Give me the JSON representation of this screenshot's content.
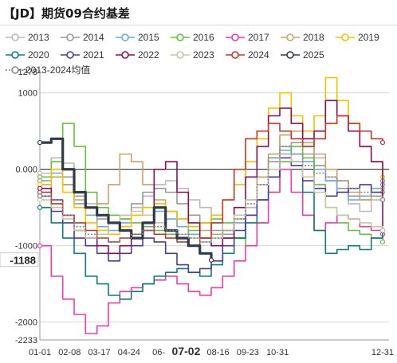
{
  "title": "【JD】期货09合约基差",
  "chart_data": {
    "type": "line",
    "title": "【JD】期货09合约基差",
    "xlabel": "",
    "ylabel": "",
    "x_ticks": [
      "01-01",
      "02-08",
      "03-17",
      "04-24",
      "06-",
      "07-02",
      "08-16",
      "09-23",
      "10-31",
      "12-31"
    ],
    "x_highlight": "07-02",
    "y_ticks": [
      "1000",
      "0.000",
      "-1000",
      "-2000",
      "-2233"
    ],
    "y_top_label": "1278",
    "y_min": -2233,
    "y_max": 1278,
    "y_highlight": "-1188",
    "grid": "horizontal",
    "legend_placement": "top",
    "series": [
      {
        "name": "2013",
        "color": "#b9b9b9",
        "values": [
          -50,
          150,
          80,
          -300,
          -450,
          -600,
          -700,
          -650,
          -500,
          -350,
          -200,
          -150,
          -250,
          -400,
          -500,
          -700,
          -800,
          -900,
          -500,
          -100,
          200,
          450,
          400,
          300,
          150,
          -100,
          -300,
          -450,
          -550,
          -400,
          -250
        ]
      },
      {
        "name": "2014",
        "color": "#9a9a9a",
        "values": [
          -150,
          0,
          -100,
          -350,
          -500,
          -650,
          -700,
          -600,
          -450,
          -300,
          -250,
          -300,
          -450,
          -600,
          -700,
          -800,
          -850,
          -900,
          -600,
          -200,
          100,
          300,
          350,
          200,
          50,
          -150,
          -250,
          -350,
          -400,
          -300,
          -200
        ]
      },
      {
        "name": "2015",
        "color": "#6fa8dc",
        "values": [
          -200,
          -50,
          -200,
          -450,
          -600,
          -750,
          -800,
          -700,
          -600,
          -500,
          -550,
          -650,
          -750,
          -850,
          -950,
          -1000,
          -900,
          -700,
          -400,
          -100,
          150,
          250,
          200,
          100,
          0,
          -150,
          -300,
          -400,
          -350,
          -250,
          -150
        ]
      },
      {
        "name": "2016",
        "color": "#6abf3c",
        "values": [
          -100,
          100,
          600,
          300,
          -300,
          -500,
          -600,
          -650,
          -700,
          -750,
          -800,
          -850,
          -900,
          -800,
          -700,
          -650,
          -700,
          -900,
          -1000,
          -700,
          -300,
          100,
          300,
          150,
          -200,
          -500,
          -700,
          -800,
          -850,
          -900,
          -950
        ]
      },
      {
        "name": "2017",
        "color": "#f13ba8",
        "values": [
          -1000,
          -1400,
          -1700,
          -1900,
          -2150,
          -2050,
          -1750,
          -1600,
          -1550,
          -1500,
          -1450,
          -1400,
          -1500,
          -1600,
          -1650,
          -1550,
          -1400,
          -1200,
          -1000,
          -700,
          -300,
          0,
          -300,
          -600,
          -800,
          -700,
          -600,
          -650,
          -750,
          -800,
          -850
        ]
      },
      {
        "name": "2018",
        "color": "#c7a36a",
        "values": [
          -300,
          -100,
          -200,
          -400,
          -500,
          -450,
          -200,
          200,
          100,
          -200,
          -400,
          -550,
          -650,
          -750,
          -800,
          -850,
          -800,
          -650,
          -400,
          -100,
          200,
          450,
          500,
          350,
          200,
          0,
          -150,
          -300,
          -400,
          -350,
          -300
        ]
      },
      {
        "name": "2019",
        "color": "#f5c000",
        "values": [
          -200,
          0,
          -300,
          -500,
          -700,
          -800,
          -850,
          -750,
          -600,
          -500,
          -450,
          -550,
          -650,
          -750,
          -700,
          -600,
          -400,
          -200,
          100,
          400,
          800,
          1000,
          700,
          500,
          700,
          1200,
          900,
          600,
          300,
          100,
          -100
        ]
      },
      {
        "name": "2020",
        "color": "#0b7d7d",
        "values": [
          -500,
          -700,
          -900,
          -1100,
          -1400,
          -1500,
          -1650,
          -1700,
          -1600,
          -1500,
          -1400,
          -1350,
          -1300,
          -1350,
          -1400,
          -1250,
          -1100,
          -900,
          -700,
          -400,
          -100,
          200,
          100,
          -300,
          -800,
          -1100,
          -1050,
          -1000,
          -1050,
          -900,
          -800
        ]
      },
      {
        "name": "2021",
        "color": "#4b3aa0",
        "values": [
          -350,
          -550,
          -700,
          -900,
          -1000,
          -1100,
          -1200,
          -1100,
          -1000,
          -900,
          -950,
          -1100,
          -1250,
          -1350,
          -1300,
          -1200,
          -1000,
          -800,
          -600,
          -400,
          -100,
          150,
          50,
          -150,
          -250,
          -350,
          -300,
          -250,
          -200,
          -300,
          -400
        ]
      },
      {
        "name": "2022",
        "color": "#8c0f55",
        "values": [
          -250,
          -400,
          -600,
          -800,
          -900,
          -1000,
          -1100,
          -1000,
          -900,
          -800,
          0,
          100,
          -300,
          -700,
          -900,
          -1000,
          -900,
          -500,
          -100,
          300,
          700,
          800,
          600,
          400,
          500,
          900,
          700,
          500,
          300,
          100,
          -800
        ]
      },
      {
        "name": "2023",
        "color": "#c5c8a0",
        "values": [
          -400,
          -500,
          -650,
          -800,
          -900,
          -850,
          -700,
          -600,
          -550,
          -600,
          -700,
          -800,
          -850,
          -900,
          -950,
          -900,
          -800,
          -600,
          -400,
          -200,
          0,
          200,
          100,
          -100,
          -300,
          -500,
          -600,
          -650,
          -700,
          -750,
          -800
        ]
      },
      {
        "name": "2024",
        "color": "#c0392b",
        "values": [
          -300,
          -450,
          -600,
          -700,
          -800,
          -900,
          -950,
          -900,
          -850,
          -800,
          -850,
          -900,
          -950,
          -1000,
          -900,
          -700,
          -400,
          0,
          400,
          500,
          600,
          500,
          400,
          300,
          400,
          600,
          700,
          600,
          500,
          400,
          350
        ]
      },
      {
        "name": "2025",
        "color": "#2e3a4a",
        "values": [
          350,
          400,
          0,
          -300,
          -500,
          -600,
          -700,
          -800,
          -900,
          -700,
          -500,
          -800,
          -900,
          -1000,
          -1100,
          -1188
        ]
      },
      {
        "name": "2013-2024均值",
        "color": "#888888",
        "values": [
          -350,
          -400,
          -600,
          -750,
          -850,
          -900,
          -950,
          -900,
          -850,
          -800,
          -750,
          -800,
          -850,
          -900,
          -950,
          -900,
          -800,
          -650,
          -450,
          -200,
          150,
          300,
          200,
          50,
          -50,
          -100,
          -150,
          -250,
          -300,
          -350,
          -400
        ]
      }
    ]
  }
}
